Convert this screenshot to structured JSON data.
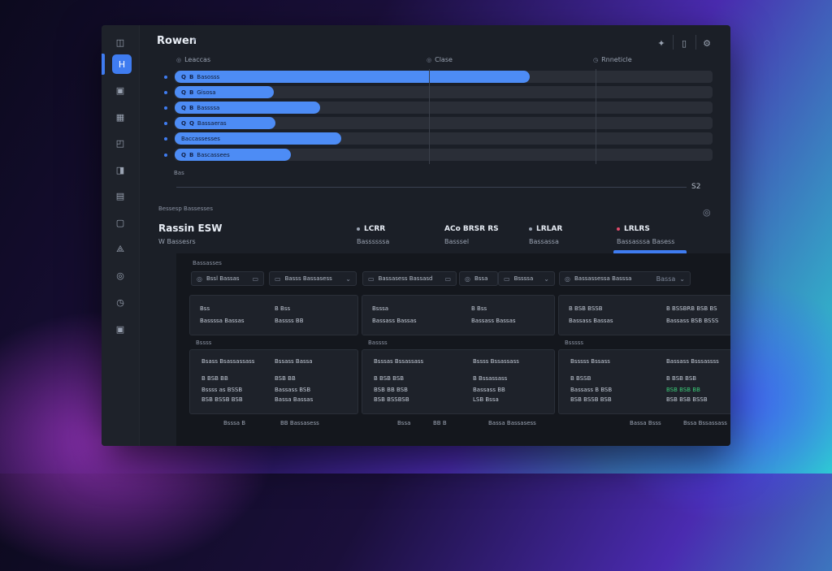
{
  "colors": {
    "accent": "#4d8cf5",
    "success": "#3ccf7a",
    "danger": "#e04a6a"
  },
  "header": {
    "title": "Rowen",
    "icons": [
      "sparkle-icon",
      "device-icon",
      "settings-icon"
    ]
  },
  "sidebar": {
    "items": [
      {
        "icon": "grid-icon",
        "glyph": "◫"
      },
      {
        "icon": "home-icon",
        "glyph": "Н",
        "active": true
      },
      {
        "icon": "layers-icon",
        "glyph": "▣"
      },
      {
        "icon": "table-icon",
        "glyph": "▦"
      },
      {
        "icon": "chart-icon",
        "glyph": "◰"
      },
      {
        "icon": "stack-icon",
        "glyph": "◨"
      },
      {
        "icon": "folder-icon",
        "glyph": "▤"
      },
      {
        "icon": "message-icon",
        "glyph": "▢"
      },
      {
        "icon": "users-icon",
        "glyph": "⟁"
      },
      {
        "icon": "tag-icon",
        "glyph": "◎"
      },
      {
        "icon": "clock-icon",
        "glyph": "◷"
      },
      {
        "icon": "archive-icon",
        "glyph": "▣"
      }
    ]
  },
  "timeline": {
    "columns": [
      "Leaccas",
      "Clase",
      "Rnneticle"
    ],
    "rows": [
      {
        "tag": "Q",
        "code": "B",
        "label": "Basosss",
        "progress": 0.66
      },
      {
        "tag": "Q",
        "code": "B",
        "label": "Gisosa",
        "progress": 0.185
      },
      {
        "tag": "Q",
        "code": "B",
        "label": "Bassssa",
        "progress": 0.27
      },
      {
        "tag": "Q",
        "code": "Q",
        "label": "Bassaeras",
        "progress": 0.188
      },
      {
        "tag": "",
        "code": "",
        "label": "Baccassesses",
        "progress": 0.31
      },
      {
        "tag": "Q",
        "code": "B",
        "label": "Bascassees",
        "progress": 0.216
      }
    ],
    "axis_start": "Bas",
    "axis_end": "S2"
  },
  "summary": {
    "section_label": "Bessesp Bassesses",
    "stats": [
      {
        "value": "Rassin ESW",
        "sub": "W Bassesrs"
      },
      {
        "value": "LCRR",
        "sub": "Bassssssa"
      },
      {
        "value": "ACo BRSR RS",
        "sub": "Basssel"
      },
      {
        "value": "LRLAR",
        "sub": "Bassassa"
      },
      {
        "value": "LRLRS",
        "sub": "Bassasssa Basess"
      }
    ]
  },
  "filters": {
    "title": "Bassasses",
    "items": [
      {
        "label": "Bssl Bassas",
        "end": "▭"
      },
      {
        "label": "Basss Bassasess",
        "end": "⌄"
      },
      {
        "label": "Bassasess Bassasd",
        "end": "▭"
      },
      {
        "label": "Bssa",
        "end": ""
      },
      {
        "label": "Bssssa",
        "end": "⌄"
      },
      {
        "label": "Bassassessa Basssa",
        "end": ""
      },
      {
        "label": "Bassa",
        "end": "⌄"
      }
    ]
  },
  "cards_top": [
    {
      "a1": "Bss",
      "a2": "Bassssa Bassas",
      "b1": "B Bss",
      "b2": "Bassss",
      "b3": "BB"
    },
    {
      "a1": "Bsssa",
      "a2": "Bassass Bassas",
      "b1": "B Bss",
      "b2": "Bassass Bassas"
    },
    {
      "a1": "B BSB BSSB",
      "a2": "Bassass Bassas",
      "b1": "B BSSBRB BSB BS",
      "b2": "Bassass BSB BSSS"
    }
  ],
  "groups": [
    "Bssss",
    "Bassss",
    "Bsssss"
  ],
  "cards_bottom": [
    {
      "h1": "Bsass Bsassassass",
      "h2": "Bssass Bassa",
      "r1a": "B BSB BB",
      "r1b": "BSB BB",
      "r2a": "Bssss as BSSB",
      "r2b": "Bassass",
      "r2c": "BSB",
      "r3a": "BSB BSSB BSB",
      "r3b": "Bassa Bassas"
    },
    {
      "h1": "Bsssas Bssassass",
      "h2": "Bssss Bssassass",
      "r1a": "B BSB BSB",
      "r1b": "B Bssassass",
      "r2a": "BSB BB",
      "r2b": "BSB",
      "r2c": "Bassass BB",
      "r3a": "BSB BSSBSB",
      "r3b": "LSB Bssa"
    },
    {
      "h1": "Bsssss Bssass",
      "h2": "Bassass Bsssassss",
      "r1a": "B BSSB",
      "r1b": "B BSB BSB",
      "r2a": "Bassass B BSB",
      "r2b": "BSB BSB BB",
      "r3a": "BSB BSSB BSB",
      "r3b": "BSB BSB BSSB"
    }
  ],
  "footer": [
    "Bsssa B",
    "BB Bassasess",
    "Bssa",
    "BB B",
    "Bassa Bassasess",
    "Bassa Bsss",
    "Bssa Bssassass"
  ]
}
